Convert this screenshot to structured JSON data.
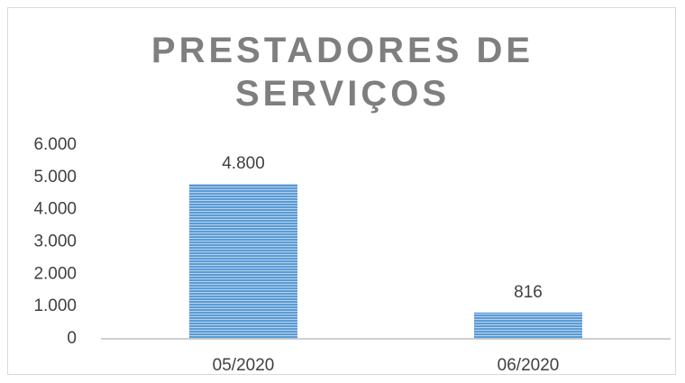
{
  "chart_data": {
    "type": "bar",
    "title": "PRESTADORES DE SERVIÇOS",
    "categories": [
      "05/2020",
      "06/2020"
    ],
    "values": [
      4800,
      816
    ],
    "value_labels": [
      "4.800",
      "816"
    ],
    "color": "#5b9bd5",
    "ylim": [
      0,
      6000
    ],
    "yticks": [
      0,
      {
        "value": 1000,
        "label": "1.000"
      },
      {
        "value": 2000,
        "label": "2.000"
      },
      {
        "value": 3000,
        "label": "3.000"
      },
      {
        "value": 4000,
        "label": "4.000"
      },
      {
        "value": 5000,
        "label": "5.000"
      },
      {
        "value": 6000,
        "label": "6.000"
      }
    ],
    "grid": false
  }
}
